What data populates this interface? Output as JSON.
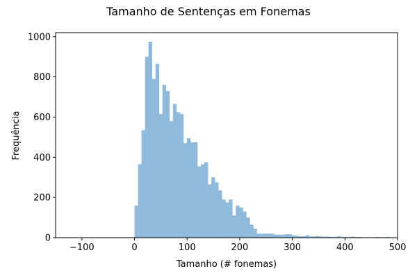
{
  "chart_data": {
    "type": "bar",
    "title": "Tamanho de Sentenças em Fonemas",
    "xlabel": "Tamanho (# fonemas)",
    "ylabel": "Frequência",
    "xlim": [
      -150,
      500
    ],
    "ylim": [
      0,
      1020
    ],
    "xticks": [
      -100,
      0,
      100,
      200,
      300,
      400,
      500
    ],
    "yticks": [
      0,
      200,
      400,
      600,
      800,
      1000
    ],
    "xtick_labels": [
      "−100",
      "0",
      "100",
      "200",
      "300",
      "400",
      "500"
    ],
    "ytick_labels": [
      "0",
      "200",
      "400",
      "600",
      "800",
      "1000"
    ],
    "grid": false,
    "bar_color": "#8fbadb",
    "bin_width": 6.64,
    "bin_starts": [
      0.0,
      6.64,
      13.28,
      19.92,
      26.56,
      33.2,
      39.84,
      46.48,
      53.12,
      59.76,
      66.4,
      73.04,
      79.68,
      86.32,
      92.96,
      99.6,
      106.24,
      112.88,
      119.52,
      126.16,
      132.8,
      139.44,
      146.08,
      152.72,
      159.36,
      166.0,
      172.64,
      179.28,
      185.92,
      192.56,
      199.2,
      205.84,
      212.48,
      219.12,
      225.76,
      232.4,
      239.04,
      245.68,
      252.32,
      258.96,
      265.6,
      272.24,
      278.88,
      285.52,
      292.16,
      298.8,
      305.44,
      312.08,
      318.72,
      325.36,
      332.0,
      338.64,
      345.28,
      351.92,
      358.56,
      365.2,
      371.84,
      378.48,
      385.12,
      391.76,
      398.4,
      405.04,
      411.68,
      418.32,
      424.96,
      431.6,
      438.24,
      444.88,
      451.52,
      458.16,
      464.8,
      471.44,
      478.08,
      484.72,
      491.36
    ],
    "values": [
      160,
      365,
      535,
      900,
      975,
      790,
      865,
      615,
      760,
      730,
      580,
      665,
      625,
      615,
      470,
      495,
      475,
      475,
      355,
      365,
      375,
      265,
      300,
      275,
      235,
      190,
      175,
      190,
      110,
      160,
      150,
      130,
      100,
      65,
      45,
      20,
      20,
      20,
      20,
      20,
      15,
      15,
      15,
      17,
      17,
      12,
      10,
      7,
      7,
      12,
      6,
      6,
      8,
      6,
      5,
      5,
      4,
      4,
      7,
      4,
      3,
      3,
      5,
      3,
      3,
      2,
      2,
      2,
      2,
      3,
      2,
      2,
      4,
      1,
      2
    ]
  }
}
